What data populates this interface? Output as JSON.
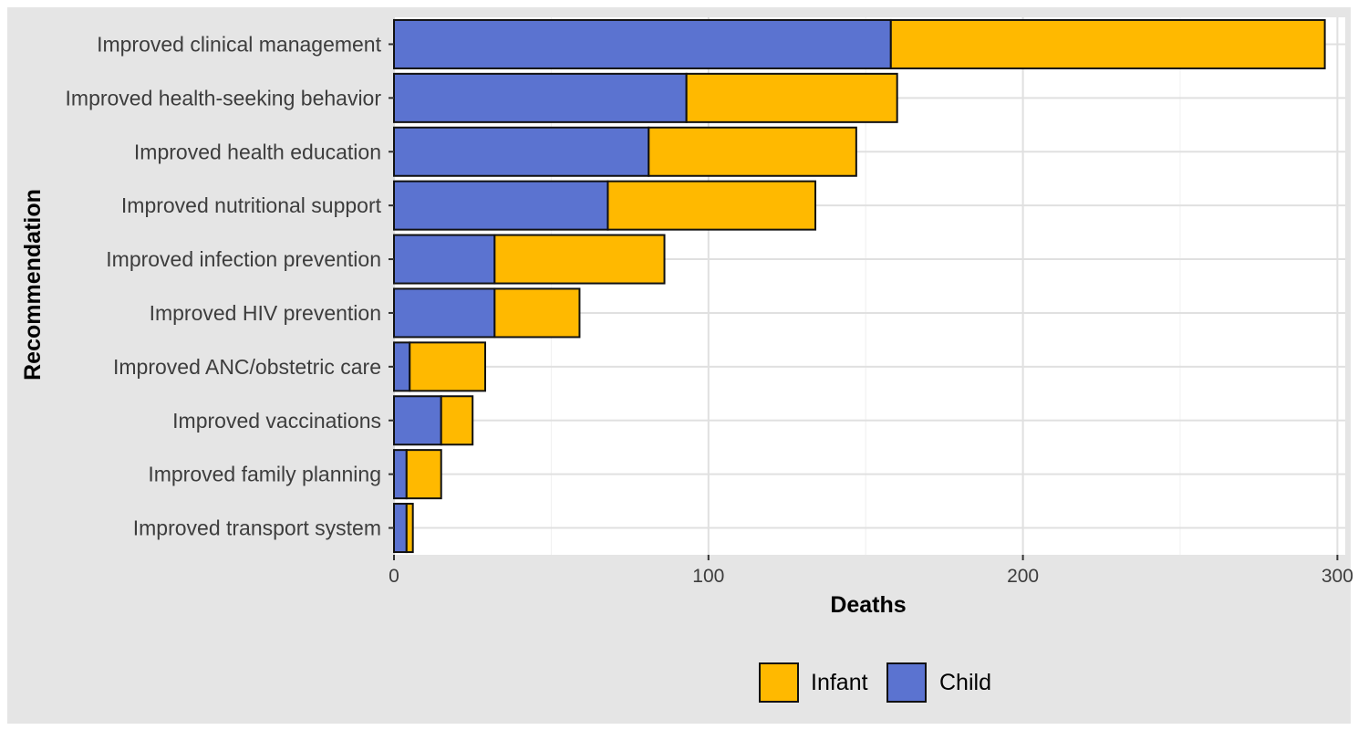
{
  "chart_data": {
    "type": "bar",
    "orientation": "horizontal",
    "stacked": true,
    "categories": [
      "Improved clinical management",
      "Improved health-seeking behavior",
      "Improved health education",
      "Improved nutritional support",
      "Improved infection prevention",
      "Improved HIV prevention",
      "Improved ANC/obstetric care",
      "Improved vaccinations",
      "Improved family planning",
      "Improved transport system"
    ],
    "series": [
      {
        "name": "Child",
        "color": "#5B73D0",
        "values": [
          158,
          93,
          81,
          68,
          32,
          32,
          5,
          15,
          4,
          4
        ]
      },
      {
        "name": "Infant",
        "color": "#FFB900",
        "values": [
          138,
          67,
          66,
          66,
          54,
          27,
          24,
          10,
          11,
          2
        ]
      }
    ],
    "xlabel": "Deaths",
    "ylabel": "Recommendation",
    "xlim": [
      0,
      300
    ],
    "xticks": [
      0,
      100,
      200,
      300
    ],
    "legend": {
      "position": "bottom",
      "order": [
        "Infant",
        "Child"
      ]
    },
    "grid": true,
    "panel_background": "#FFFFFF",
    "plot_background": "#E5E5E5",
    "grid_color": "#E0E0E0",
    "bar_outline": "#111111"
  }
}
